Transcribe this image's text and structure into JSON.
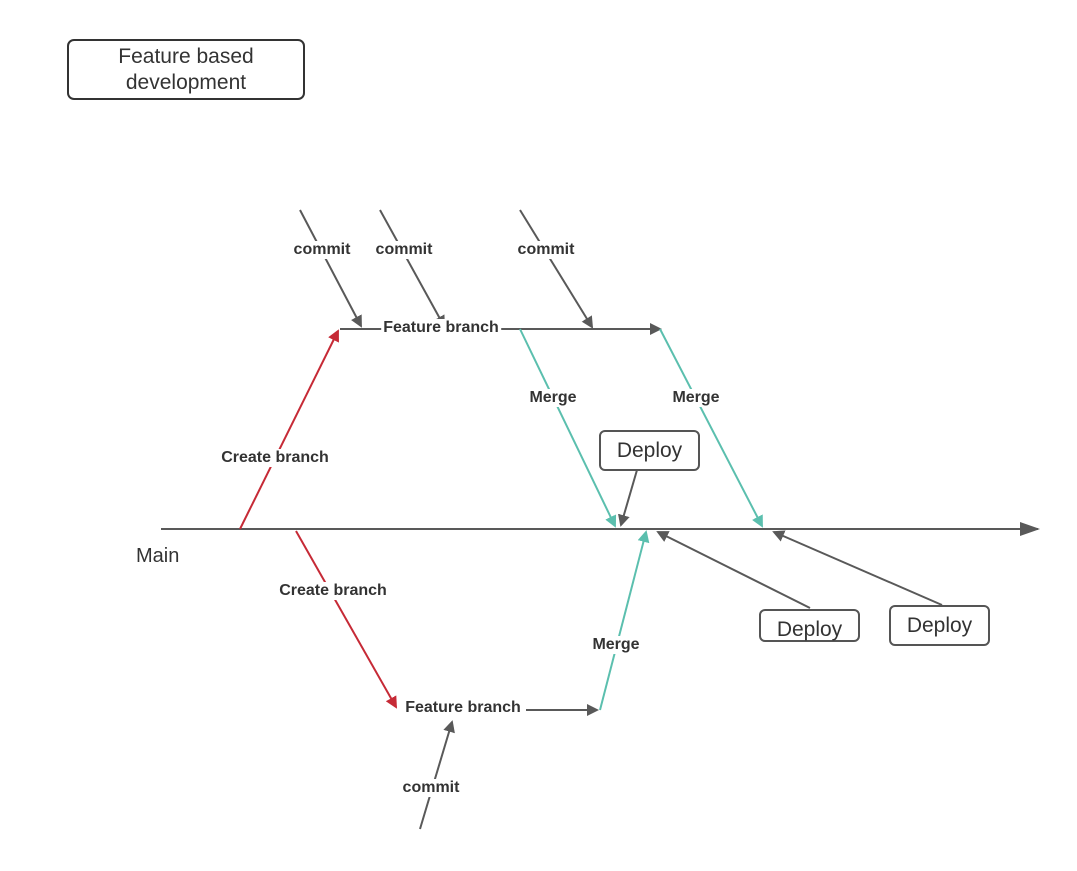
{
  "title": "Feature based development",
  "main_label": "Main",
  "labels": {
    "commit": "commit",
    "feature_branch": "Feature branch",
    "create_branch": "Create branch",
    "merge": "Merge",
    "deploy": "Deploy"
  },
  "colors": {
    "line": "#595959",
    "create_branch": "#c62a36",
    "merge": "#5bbfae",
    "text": "#333333"
  }
}
